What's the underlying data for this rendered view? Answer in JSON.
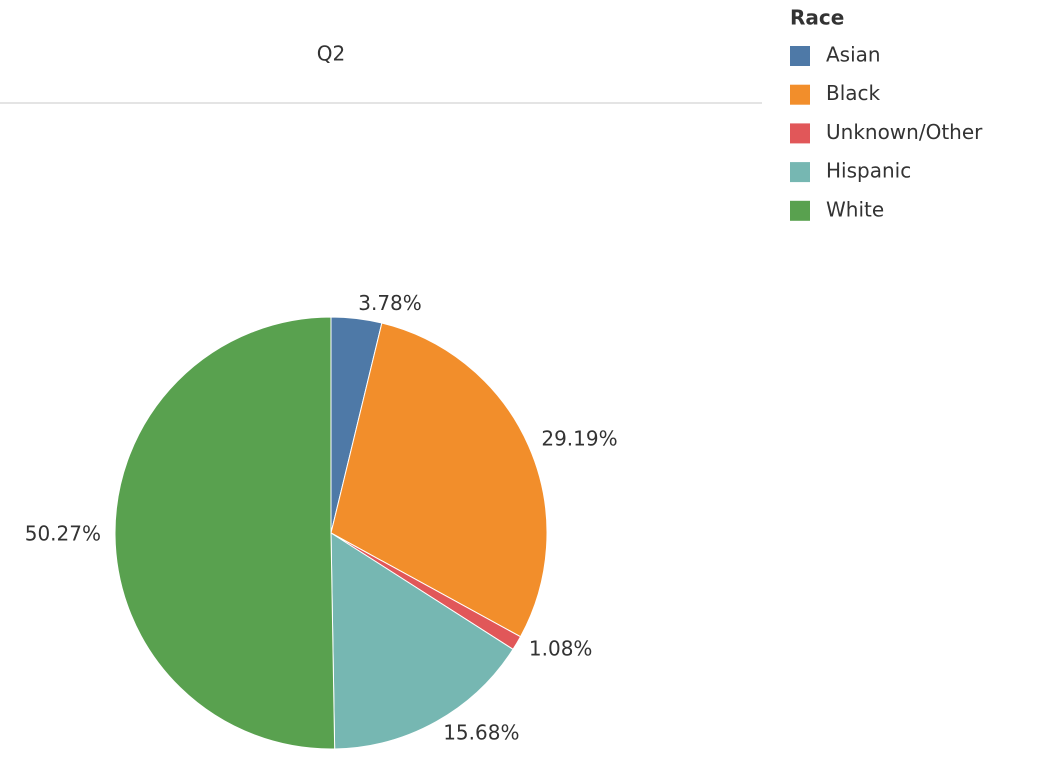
{
  "chart_data": {
    "type": "pie",
    "title": "Q2",
    "legend_title": "Race",
    "categories": [
      "Asian",
      "Black",
      "Unknown/Other",
      "Hispanic",
      "White"
    ],
    "values": [
      3.78,
      29.19,
      1.08,
      15.68,
      50.27
    ],
    "value_labels": [
      "3.78%",
      "29.19%",
      "1.08%",
      "15.68%",
      "50.27%"
    ],
    "colors": [
      "#4e79a7",
      "#f28e2b",
      "#e15759",
      "#76b7b2",
      "#59a14f"
    ],
    "legend": "top-right"
  }
}
